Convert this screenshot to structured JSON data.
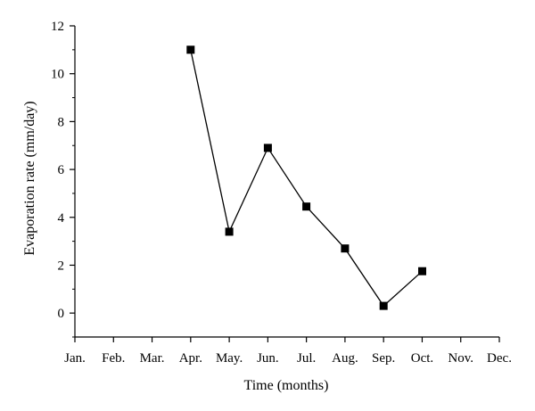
{
  "chart_data": {
    "type": "line",
    "xlabel": "Time (months)",
    "ylabel": "Evaporation rate (mm/day)",
    "categories": [
      "Jan.",
      "Feb.",
      "Mar.",
      "Apr.",
      "May.",
      "Jun.",
      "Jul.",
      "Aug.",
      "Sep.",
      "Oct.",
      "Nov.",
      "Dec."
    ],
    "series": [
      {
        "x": [
          "Apr.",
          "May.",
          "Jun.",
          "Jul.",
          "Aug.",
          "Sep.",
          "Oct."
        ],
        "values": [
          11.0,
          3.4,
          6.9,
          4.45,
          2.7,
          0.3,
          1.75
        ]
      }
    ],
    "ylim": [
      -1,
      12
    ],
    "yticks": [
      0,
      2,
      4,
      6,
      8,
      10,
      12
    ],
    "grid": false,
    "legend": "none",
    "colors": {
      "line": "#000000",
      "marker": "#000000",
      "axis": "#000000"
    }
  }
}
